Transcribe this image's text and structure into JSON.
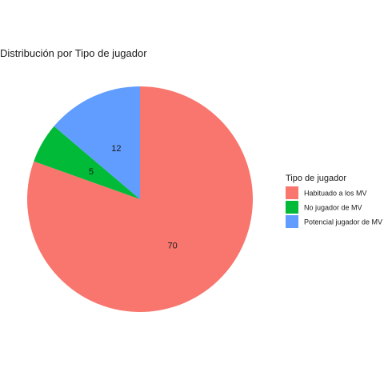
{
  "chart_data": {
    "type": "pie",
    "title": "Distribución por Tipo de jugador",
    "categories": [
      "Habituado a los MV",
      "No jugador de MV",
      "Potencial jugador de MV"
    ],
    "values": [
      70,
      5,
      12
    ],
    "colors": [
      "#F8766D",
      "#00BA38",
      "#619CFF"
    ],
    "legend": {
      "title": "Tipo de jugador",
      "position": "right"
    }
  }
}
